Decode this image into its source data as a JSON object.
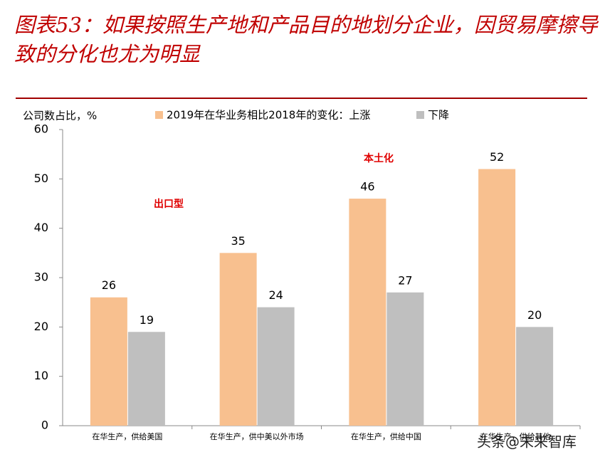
{
  "chart_data": {
    "type": "bar",
    "title": "图表53：如果按照生产地和产品目的地划分企业，因贸易摩擦导致的分化也尤为明显",
    "y_label": "公司数占比，%",
    "categories": [
      "在华生产，供给美国",
      "在华生产，供中美以外市场",
      "在华生产，供给中国",
      "在华生产，供给其他"
    ],
    "series": [
      {
        "name": "2019年在华业务相比2018年的变化：上涨",
        "color": "#f8c08f",
        "values": [
          26,
          35,
          46,
          52
        ]
      },
      {
        "name": "下降",
        "color": "#bfbfbf",
        "values": [
          19,
          24,
          27,
          20
        ]
      }
    ],
    "annotations": [
      "出口型",
      "本土化"
    ],
    "watermark": "头条@未来智库",
    "ylim": [
      0,
      60
    ],
    "yticks": [
      0,
      10,
      20,
      30,
      40,
      50,
      60
    ],
    "grid": false
  }
}
